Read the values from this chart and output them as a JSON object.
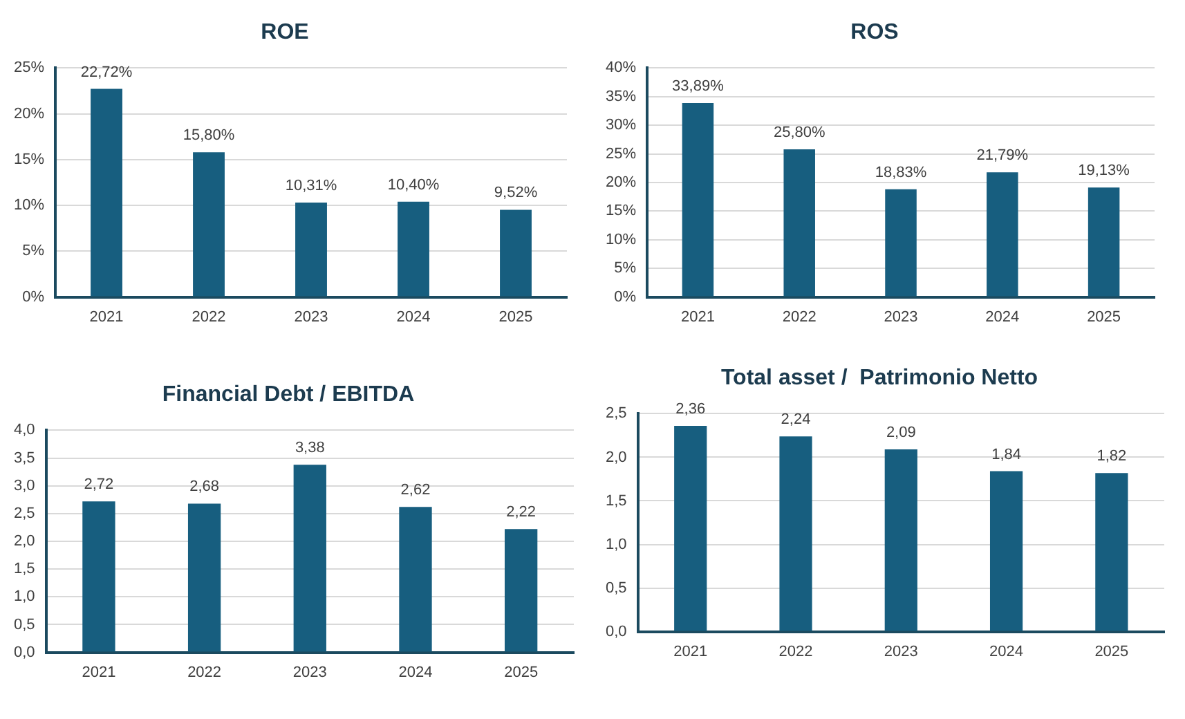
{
  "chart_data": [
    {
      "type": "bar",
      "title": "ROE",
      "categories": [
        "2021",
        "2022",
        "2023",
        "2024",
        "2025"
      ],
      "values": [
        22.72,
        15.8,
        10.31,
        10.4,
        9.52
      ],
      "value_labels": [
        "22,72%",
        "15,80%",
        "10,31%",
        "10,40%",
        "9,52%"
      ],
      "color": "#175e7f",
      "ylim": [
        0,
        25
      ],
      "yticks": [
        {
          "value": 0,
          "label": "0%"
        },
        {
          "value": 5,
          "label": "5%"
        },
        {
          "value": 10,
          "label": "10%"
        },
        {
          "value": 15,
          "label": "15%"
        },
        {
          "value": 20,
          "label": "20%"
        },
        {
          "value": 25,
          "label": "25%"
        }
      ],
      "grid": "y"
    },
    {
      "type": "bar",
      "title": "ROS",
      "categories": [
        "2021",
        "2022",
        "2023",
        "2024",
        "2025"
      ],
      "values": [
        33.89,
        25.8,
        18.83,
        21.79,
        19.13
      ],
      "value_labels": [
        "33,89%",
        "25,80%",
        "18,83%",
        "21,79%",
        "19,13%"
      ],
      "color": "#175e7f",
      "ylim": [
        0,
        40
      ],
      "yticks": [
        {
          "value": 0,
          "label": "0%"
        },
        {
          "value": 5,
          "label": "5%"
        },
        {
          "value": 10,
          "label": "10%"
        },
        {
          "value": 15,
          "label": "15%"
        },
        {
          "value": 20,
          "label": "20%"
        },
        {
          "value": 25,
          "label": "25%"
        },
        {
          "value": 30,
          "label": "30%"
        },
        {
          "value": 35,
          "label": "35%"
        },
        {
          "value": 40,
          "label": "40%"
        }
      ],
      "grid": "y"
    },
    {
      "type": "bar",
      "title": "Financial Debt / EBITDA",
      "categories": [
        "2021",
        "2022",
        "2023",
        "2024",
        "2025"
      ],
      "values": [
        2.72,
        2.68,
        3.38,
        2.62,
        2.22
      ],
      "value_labels": [
        "2,72",
        "2,68",
        "3,38",
        "2,62",
        "2,22"
      ],
      "color": "#175e7f",
      "ylim": [
        0,
        4
      ],
      "yticks": [
        {
          "value": 0,
          "label": "0,0"
        },
        {
          "value": 0.5,
          "label": "0,5"
        },
        {
          "value": 1,
          "label": "1,0"
        },
        {
          "value": 1.5,
          "label": "1,5"
        },
        {
          "value": 2,
          "label": "2,0"
        },
        {
          "value": 2.5,
          "label": "2,5"
        },
        {
          "value": 3,
          "label": "3,0"
        },
        {
          "value": 3.5,
          "label": "3,5"
        },
        {
          "value": 4,
          "label": "4,0"
        }
      ],
      "grid": "y"
    },
    {
      "type": "bar",
      "title": "Total asset /  Patrimonio Netto",
      "categories": [
        "2021",
        "2022",
        "2023",
        "2024",
        "2025"
      ],
      "values": [
        2.36,
        2.24,
        2.09,
        1.84,
        1.82
      ],
      "value_labels": [
        "2,36",
        "2,24",
        "2,09",
        "1,84",
        "1,82"
      ],
      "color": "#175e7f",
      "ylim": [
        0,
        2.5
      ],
      "yticks": [
        {
          "value": 0,
          "label": "0,0"
        },
        {
          "value": 0.5,
          "label": "0,5"
        },
        {
          "value": 1,
          "label": "1,0"
        },
        {
          "value": 1.5,
          "label": "1,5"
        },
        {
          "value": 2,
          "label": "2,0"
        },
        {
          "value": 2.5,
          "label": "2,5"
        }
      ],
      "grid": "y"
    }
  ]
}
